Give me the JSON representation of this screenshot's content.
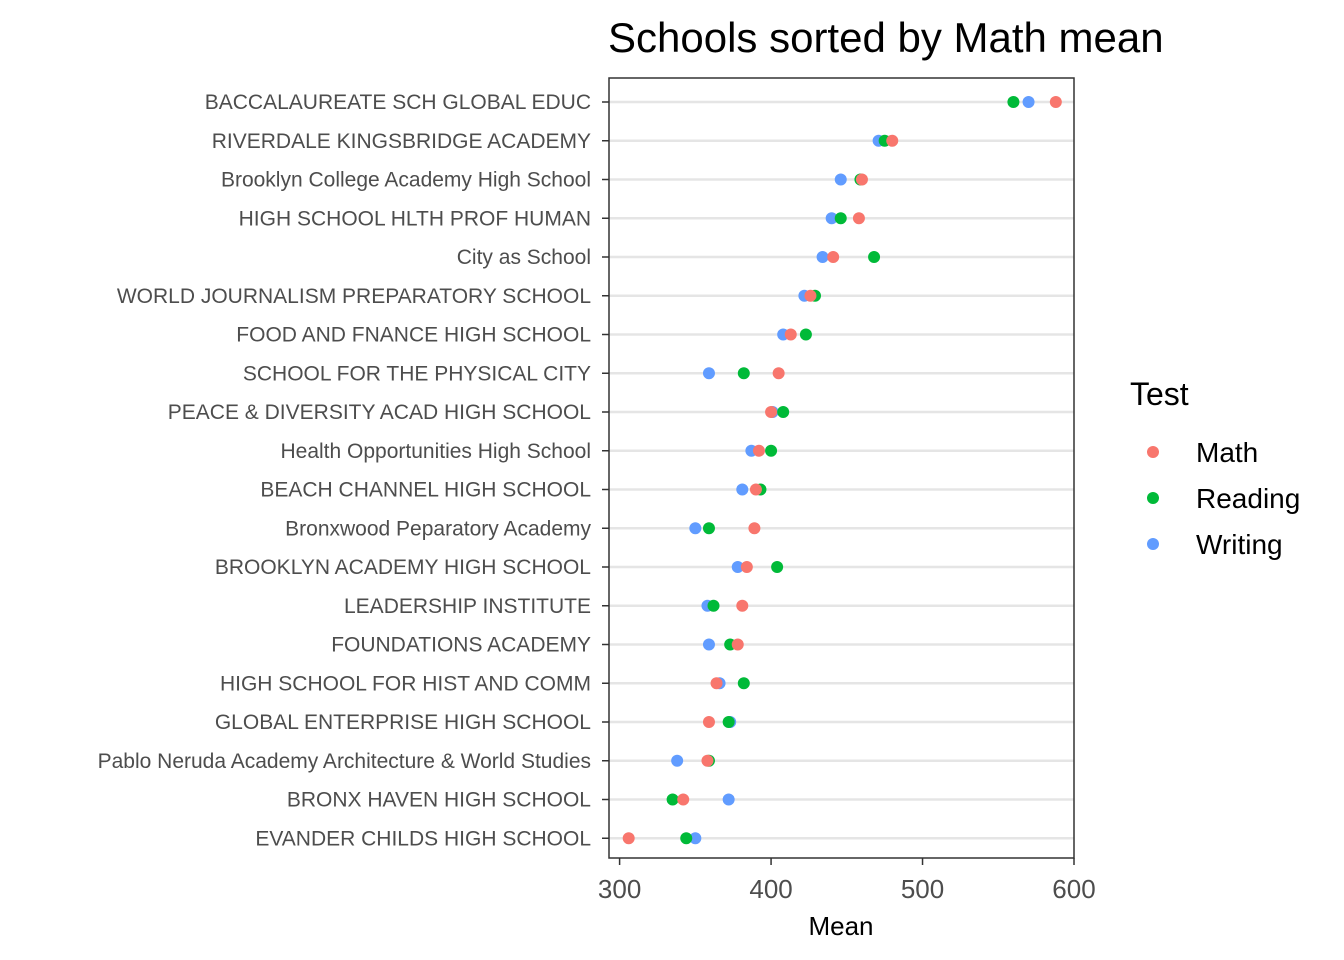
{
  "chart_data": {
    "type": "scatter",
    "title": "Schools sorted by Math mean",
    "xlabel": "Mean",
    "ylabel": "",
    "xlim": [
      293,
      600
    ],
    "xticks": [
      300,
      400,
      500,
      600
    ],
    "grid": "horizontal",
    "legend_position": "right",
    "legend": {
      "title": "Test",
      "entries": [
        "Math",
        "Reading",
        "Writing"
      ]
    },
    "series_colors": {
      "Math": "#F8766D",
      "Reading": "#00BA38",
      "Writing": "#619CFF"
    },
    "categories": [
      "BACCALAUREATE SCH GLOBAL EDUC",
      "RIVERDALE KINGSBRIDGE ACADEMY",
      "Brooklyn College Academy High School",
      "HIGH SCHOOL HLTH PROF HUMAN",
      "City as School",
      "WORLD JOURNALISM PREPARATORY SCHOOL",
      "FOOD AND FNANCE HIGH SCHOOL",
      "SCHOOL FOR THE PHYSICAL CITY",
      "PEACE & DIVERSITY ACAD HIGH SCHOOL",
      "Health Opportunities High School",
      "BEACH CHANNEL HIGH SCHOOL",
      "Bronxwood Peparatory Academy",
      "BROOKLYN ACADEMY HIGH SCHOOL",
      "LEADERSHIP INSTITUTE",
      "FOUNDATIONS ACADEMY",
      "HIGH SCHOOL FOR HIST AND COMM",
      "GLOBAL ENTERPRISE HIGH SCHOOL",
      "Pablo Neruda Academy Architecture & World Studies",
      "BRONX HAVEN HIGH SCHOOL",
      "EVANDER CHILDS HIGH SCHOOL"
    ],
    "series": [
      {
        "name": "Math",
        "values": [
          588,
          480,
          460,
          458,
          441,
          426,
          413,
          405,
          400,
          392,
          390,
          389,
          384,
          381,
          378,
          364,
          359,
          358,
          342,
          306
        ]
      },
      {
        "name": "Reading",
        "values": [
          560,
          475,
          459,
          446,
          468,
          429,
          423,
          382,
          408,
          400,
          393,
          359,
          404,
          362,
          373,
          382,
          372,
          359,
          335,
          344
        ]
      },
      {
        "name": "Writing",
        "values": [
          570,
          471,
          446,
          440,
          434,
          422,
          408,
          359,
          401,
          387,
          381,
          350,
          378,
          358,
          359,
          366,
          373,
          338,
          372,
          350
        ]
      }
    ]
  }
}
